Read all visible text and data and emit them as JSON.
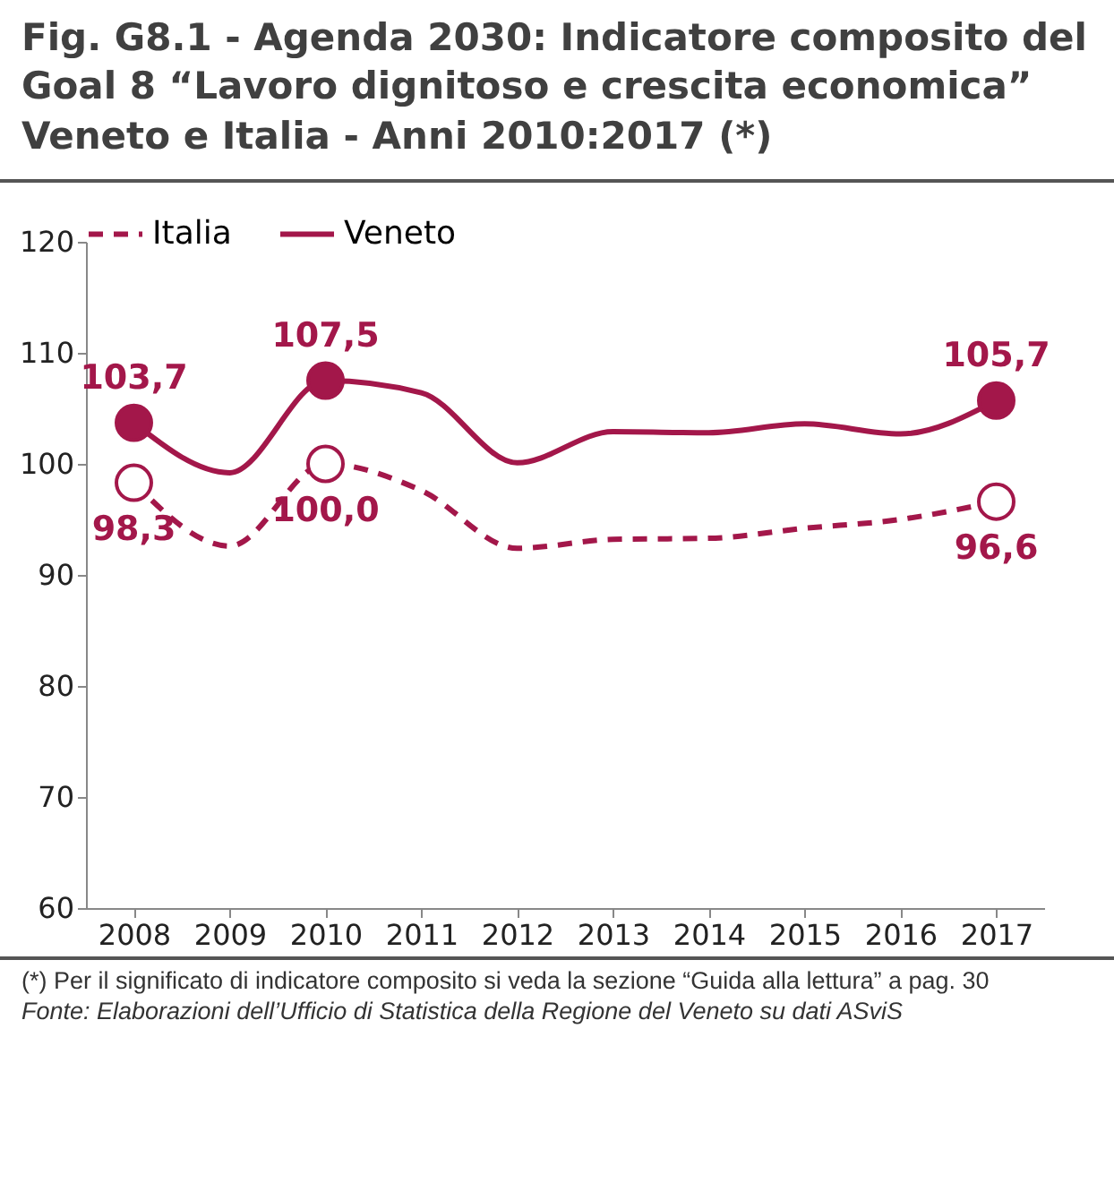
{
  "chart_data": {
    "type": "line",
    "title": "Fig. G8.1 - Agenda 2030: Indicatore composito del Goal 8 “Lavoro dignitoso e crescita economica” Veneto e Italia - Anni 2010:2017 (*)",
    "categories": [
      "2008",
      "2009",
      "2010",
      "2011",
      "2012",
      "2013",
      "2014",
      "2015",
      "2016",
      "2017"
    ],
    "series": [
      {
        "name": "Italia",
        "color": "#a3174a",
        "line_style": "dashed",
        "values": [
          98.3,
          92.6,
          100.0,
          97.6,
          92.4,
          93.2,
          93.3,
          94.2,
          95.0,
          96.6
        ],
        "value_labels": [
          "98,3",
          null,
          "100,0",
          null,
          null,
          null,
          null,
          null,
          null,
          "96,6"
        ]
      },
      {
        "name": "Veneto",
        "color": "#a3174a",
        "line_style": "solid",
        "values": [
          103.7,
          99.2,
          107.5,
          106.4,
          100.1,
          102.9,
          102.8,
          103.6,
          102.7,
          105.7
        ],
        "value_labels": [
          "103,7",
          null,
          "107,5",
          null,
          null,
          null,
          null,
          null,
          null,
          "105,7"
        ]
      }
    ],
    "ylim": [
      60,
      120
    ],
    "yticks": [
      60,
      70,
      80,
      90,
      100,
      110,
      120
    ],
    "grid": false,
    "legend": "top",
    "annotations": [
      "(*) Per il significato di indicatore composito si veda la sezione “Guida alla lettura” a pag. 30",
      "Fonte: Elaborazioni dell’Ufficio di Statistica della Regione del Veneto su dati ASviS"
    ]
  }
}
